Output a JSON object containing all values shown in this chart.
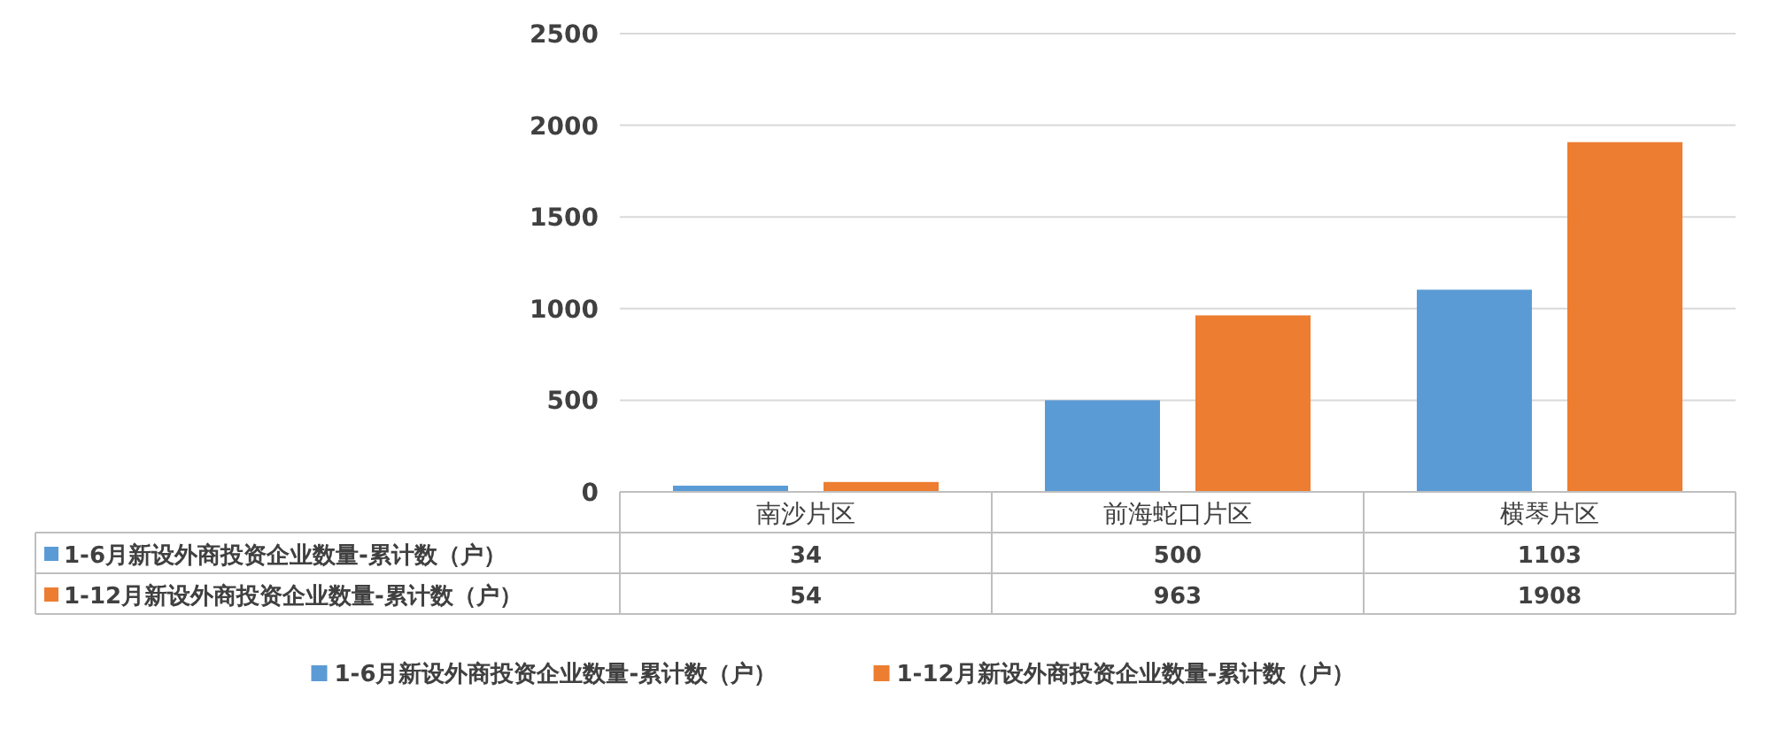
{
  "chart_data": {
    "type": "bar",
    "categories": [
      "南沙片区",
      "前海蛇口片区",
      "横琴片区"
    ],
    "series": [
      {
        "name": "1-6月新设外商投资企业数量-累计数（户）",
        "color": "#5b9bd5",
        "values": [
          34,
          500,
          1103
        ]
      },
      {
        "name": "1-12月新设外商投资企业数量-累计数（户）",
        "color": "#ed7d31",
        "values": [
          54,
          963,
          1908
        ]
      }
    ],
    "ylim": [
      0,
      2500
    ],
    "yticks": [
      0,
      500,
      1000,
      1500,
      2000,
      2500
    ],
    "grid": "y",
    "data_labels": true,
    "legend": "bottom"
  }
}
